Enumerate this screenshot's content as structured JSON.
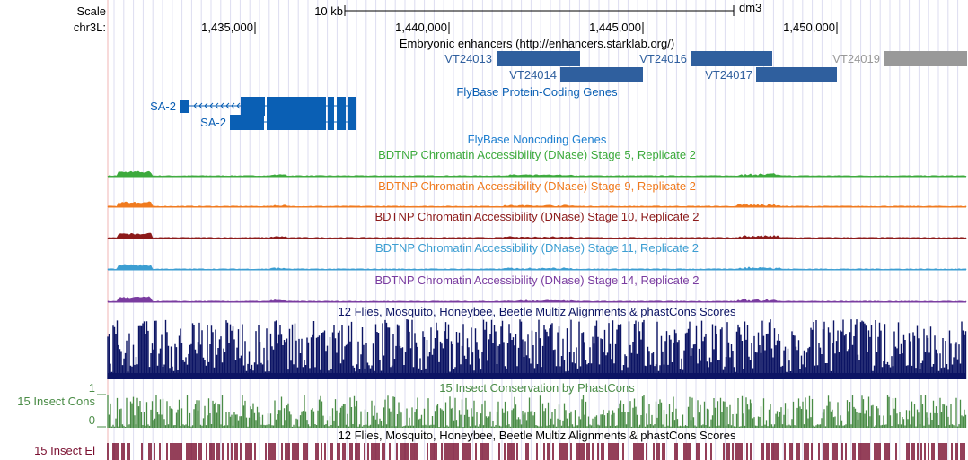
{
  "ruler": {
    "scale_label": "Scale",
    "chrom_label": "chr3L:",
    "scale_text": "10 kb",
    "assembly": "dm3",
    "positions": [
      "1,435,000",
      "1,440,000",
      "1,445,000",
      "1,450,000"
    ]
  },
  "tracks": {
    "enhancers": {
      "title": "Embryonic enhancers (http://enhancers.starklab.org/)",
      "items": [
        {
          "name": "VT24013",
          "color": "#2f5f9e"
        },
        {
          "name": "VT24014",
          "color": "#2f5f9e"
        },
        {
          "name": "VT24016",
          "color": "#2f5f9e"
        },
        {
          "name": "VT24017",
          "color": "#2f5f9e"
        },
        {
          "name": "VT24019",
          "color": "#999999"
        }
      ]
    },
    "coding_genes": {
      "title": "FlyBase Protein-Coding Genes",
      "genes": [
        "SA-2",
        "SA-2"
      ],
      "color": "#0a5fb4"
    },
    "noncoding_genes": {
      "title": "FlyBase Noncoding Genes",
      "color": "#1e7fd0"
    },
    "dnase": [
      {
        "title": "BDTNP Chromatin Accessibility (DNase) Stage 5, Replicate 2",
        "color": "#3caa3c"
      },
      {
        "title": "BDTNP Chromatin Accessibility (DNase) Stage 9, Replicate 2",
        "color": "#f07a1e"
      },
      {
        "title": "BDTNP Chromatin Accessibility (DNase) Stage 10, Replicate 2",
        "color": "#8c1a1a"
      },
      {
        "title": "BDTNP Chromatin Accessibility (DNase) Stage 11, Replicate 2",
        "color": "#3c9ed2"
      },
      {
        "title": "BDTNP Chromatin Accessibility (DNase) Stage 14, Replicate 2",
        "color": "#7a3ca0"
      }
    ],
    "multiz": {
      "title": "12 Flies, Mosquito, Honeybee, Beetle Multiz Alignments & phastCons Scores",
      "color": "#0c1464"
    },
    "insect_cons": {
      "title": "15 Insect Conservation by PhastCons",
      "side_label": "15 Insect Cons",
      "axis_max": "1",
      "axis_min": "0",
      "color": "#4a8c46"
    },
    "insect_el": {
      "title": "12 Flies, Mosquito, Honeybee, Beetle Multiz Alignments & phastCons Scores",
      "side_label": "15 Insect El",
      "color": "#7a1030"
    }
  }
}
